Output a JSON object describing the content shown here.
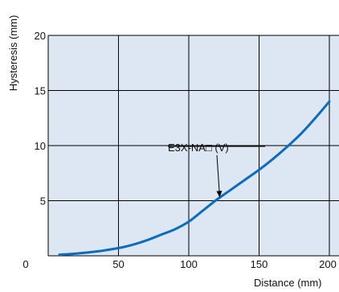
{
  "chart_data": {
    "type": "line",
    "title": "",
    "xlabel": "Distance (mm)",
    "ylabel": "Hysteresis (mm)",
    "xlim": [
      0,
      200
    ],
    "ylim": [
      0,
      20
    ],
    "x_ticks": [
      0,
      50,
      100,
      150,
      200
    ],
    "y_ticks": [
      0,
      5,
      10,
      15,
      20
    ],
    "x_tick_labels": [
      "0",
      "50",
      "100",
      "150",
      "200"
    ],
    "y_tick_labels": [
      "5",
      "10",
      "15",
      "20"
    ],
    "grid": true,
    "colors": {
      "plot_background": "#dde6f3",
      "line": "#0b6cbd",
      "grid": "#000000"
    },
    "series": [
      {
        "x": [
          8,
          20,
          35,
          50,
          60,
          70,
          80,
          90,
          100,
          110,
          120,
          130,
          140,
          150,
          160,
          170,
          180,
          190,
          200
        ],
        "y": [
          0.1,
          0.2,
          0.4,
          0.7,
          1.0,
          1.4,
          1.9,
          2.4,
          3.1,
          4.1,
          5.1,
          6.0,
          6.9,
          7.8,
          8.8,
          9.9,
          11.1,
          12.5,
          14.0
        ]
      }
    ],
    "annotations": [
      {
        "text": "E3X-NA□ (V)",
        "point_to": {
          "x": 122,
          "y": 5.3
        }
      }
    ]
  }
}
